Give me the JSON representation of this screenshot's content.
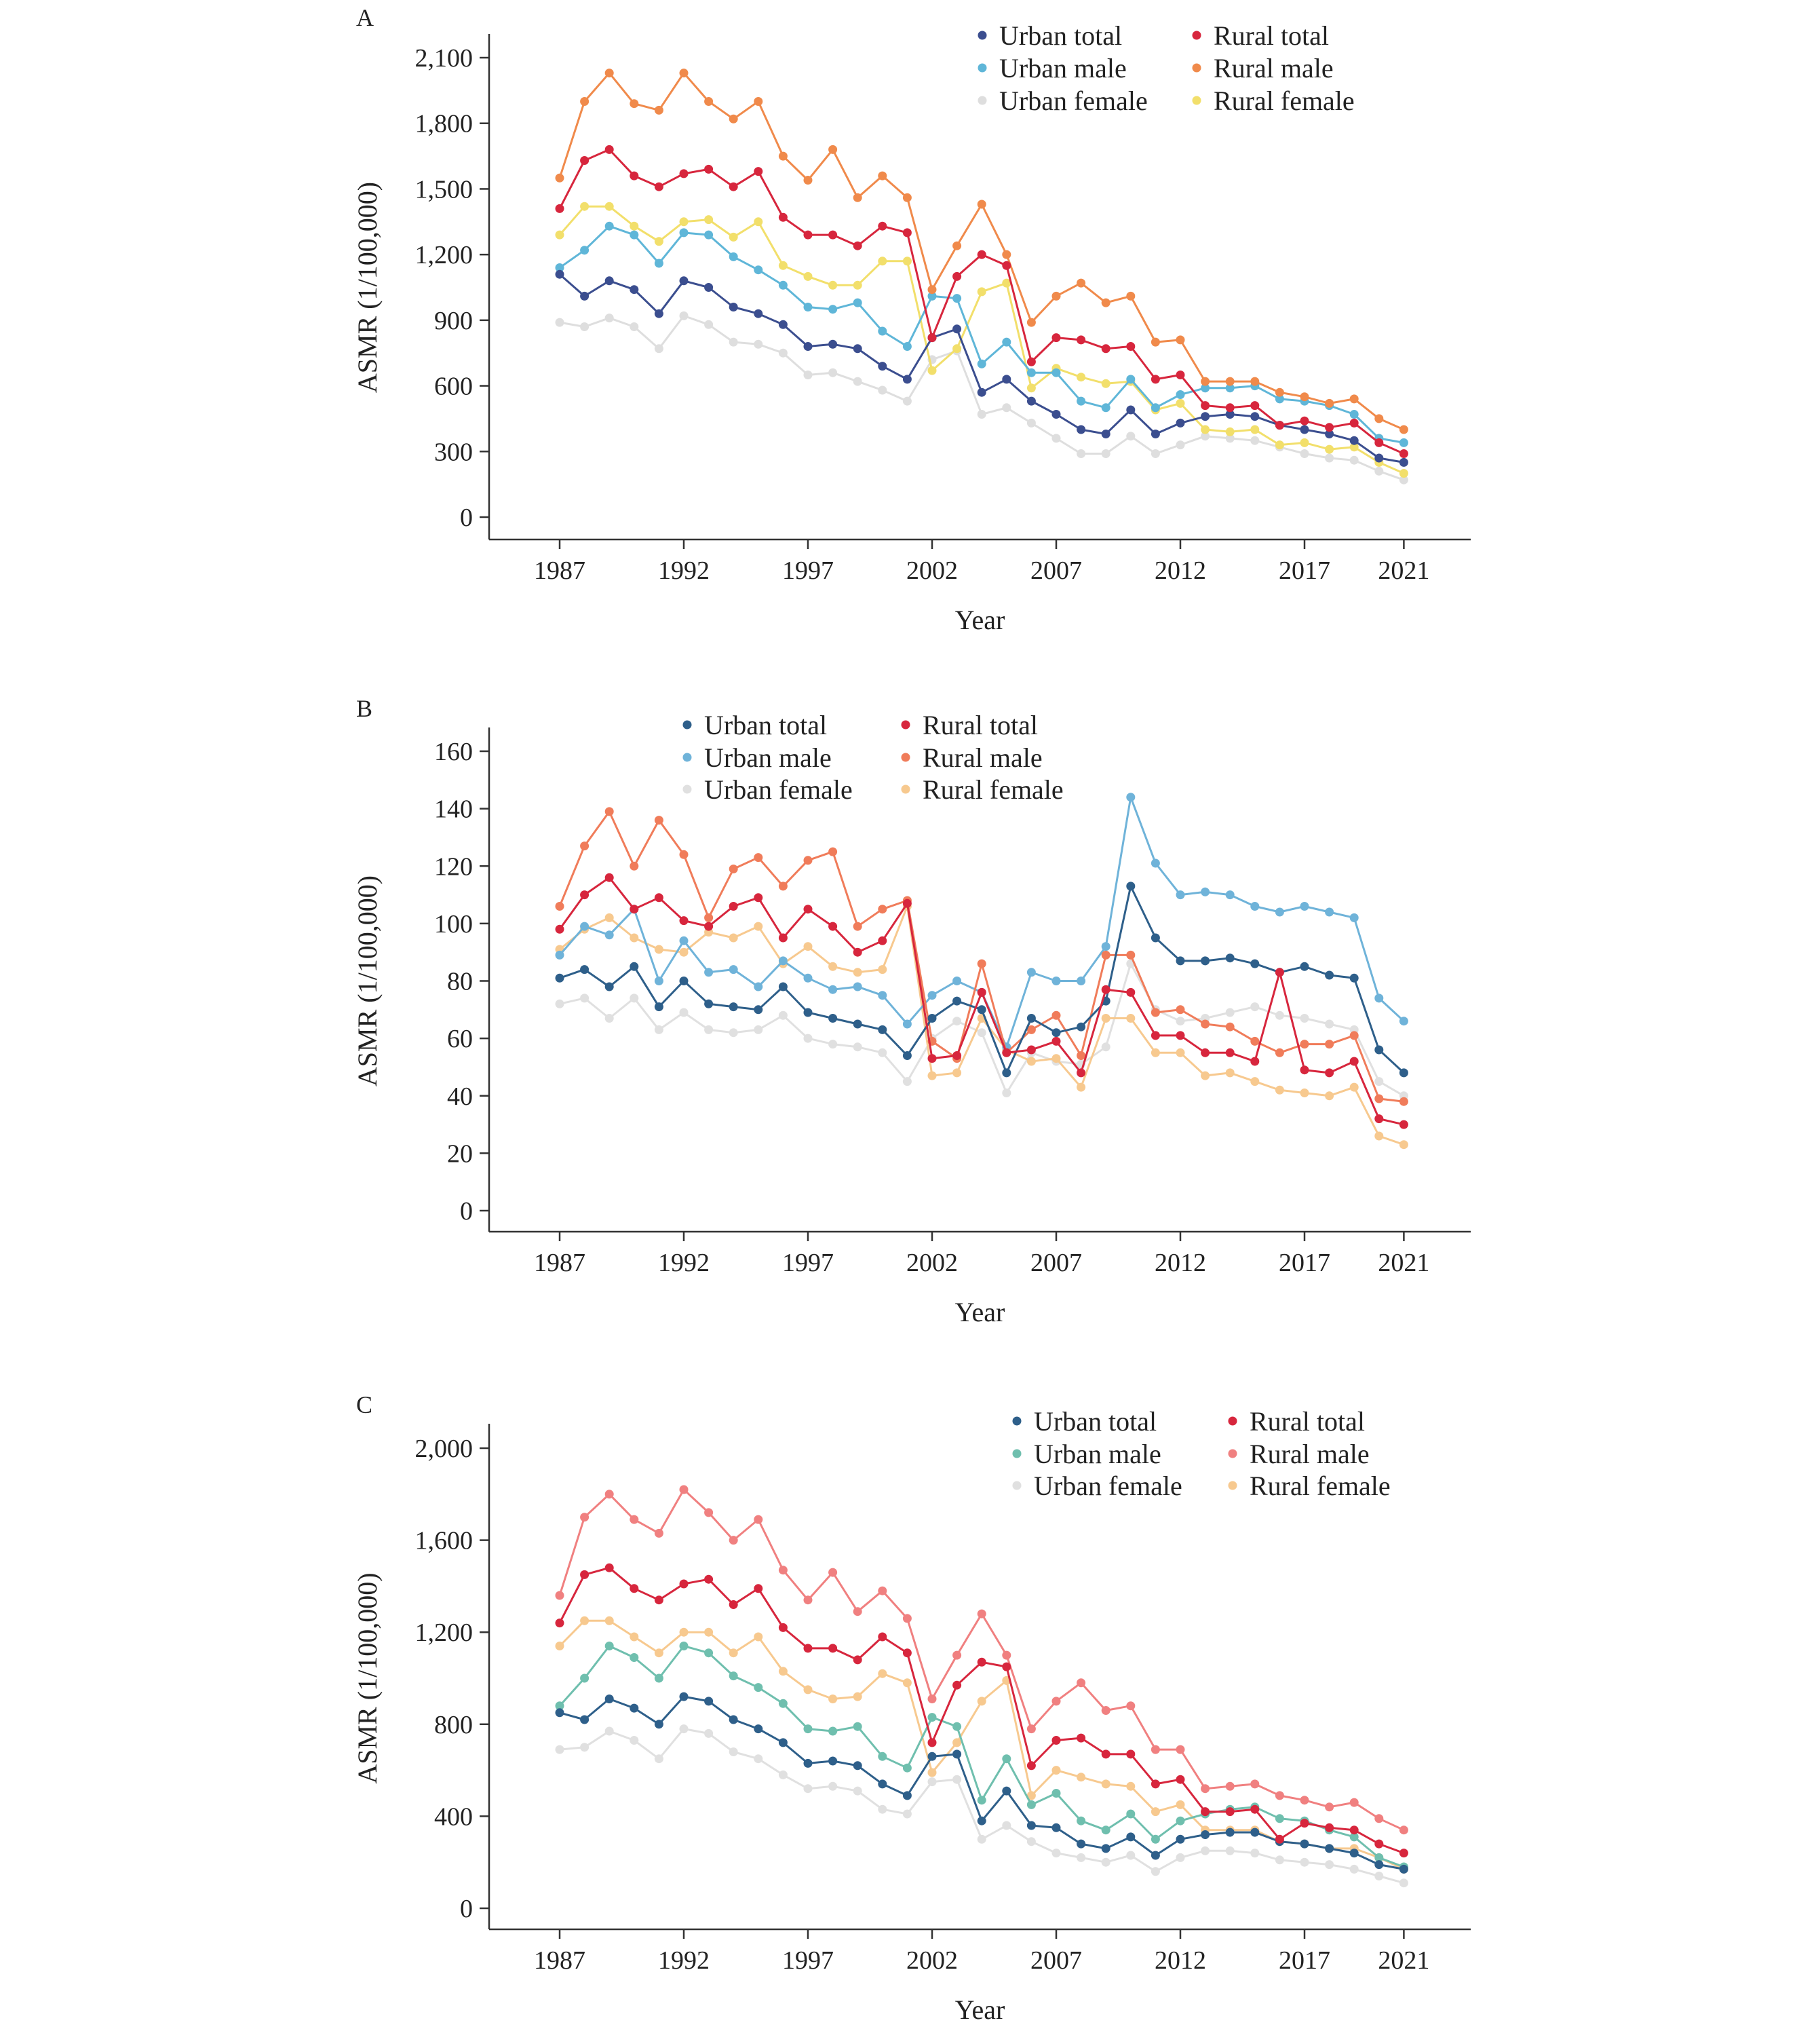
{
  "chart_data": [
    {
      "panel": "A",
      "type": "line",
      "xlabel": "Year",
      "ylabel": "ASMR (1/100,000)",
      "ylim": [
        0,
        2100
      ],
      "yticks": [
        0,
        300,
        600,
        900,
        1200,
        1500,
        1800,
        2100
      ],
      "ytick_labels": [
        "0",
        "300",
        "600",
        "900",
        "1,200",
        "1,500",
        "1,800",
        "2,100"
      ],
      "xlim": [
        1987,
        2021
      ],
      "xticks": [
        1987,
        1992,
        1997,
        2002,
        2007,
        2012,
        2017,
        2021
      ],
      "grid": false,
      "legend_position": "top-right",
      "x": [
        1987,
        1988,
        1989,
        1990,
        1991,
        1992,
        1993,
        1994,
        1995,
        1996,
        1997,
        1998,
        1999,
        2000,
        2001,
        2002,
        2003,
        2004,
        2005,
        2006,
        2007,
        2008,
        2009,
        2010,
        2011,
        2012,
        2013,
        2014,
        2015,
        2016,
        2017,
        2018,
        2019,
        2020,
        2021
      ],
      "series": [
        {
          "name": "Urban total",
          "color": "#3b4e8f",
          "values": [
            1110,
            1010,
            1080,
            1040,
            930,
            1080,
            1050,
            960,
            930,
            880,
            780,
            790,
            770,
            690,
            630,
            820,
            860,
            570,
            630,
            530,
            470,
            400,
            380,
            490,
            380,
            430,
            460,
            470,
            460,
            420,
            400,
            380,
            350,
            270,
            250
          ]
        },
        {
          "name": "Urban male",
          "color": "#5fb6d8",
          "values": [
            1140,
            1220,
            1330,
            1290,
            1160,
            1300,
            1290,
            1190,
            1130,
            1060,
            960,
            950,
            980,
            850,
            780,
            1010,
            1000,
            700,
            800,
            660,
            660,
            530,
            500,
            630,
            500,
            560,
            590,
            590,
            600,
            540,
            530,
            510,
            470,
            360,
            340
          ]
        },
        {
          "name": "Urban female",
          "color": "#dedede",
          "values": [
            890,
            870,
            910,
            870,
            770,
            920,
            880,
            800,
            790,
            750,
            650,
            660,
            620,
            580,
            530,
            720,
            760,
            470,
            500,
            430,
            360,
            290,
            290,
            370,
            290,
            330,
            370,
            360,
            350,
            320,
            290,
            270,
            260,
            210,
            170
          ]
        },
        {
          "name": "Rural total",
          "color": "#d7263d",
          "values": [
            1410,
            1630,
            1680,
            1560,
            1510,
            1570,
            1590,
            1510,
            1580,
            1370,
            1290,
            1290,
            1240,
            1330,
            1300,
            820,
            1100,
            1200,
            1150,
            710,
            820,
            810,
            770,
            780,
            630,
            650,
            510,
            500,
            510,
            420,
            440,
            410,
            430,
            340,
            290
          ]
        },
        {
          "name": "Rural male",
          "color": "#f08a4b",
          "values": [
            1550,
            1900,
            2030,
            1890,
            1860,
            2030,
            1900,
            1820,
            1900,
            1650,
            1540,
            1680,
            1460,
            1560,
            1460,
            1040,
            1240,
            1430,
            1200,
            890,
            1010,
            1070,
            980,
            1010,
            800,
            810,
            620,
            620,
            620,
            570,
            550,
            520,
            540,
            450,
            400
          ]
        },
        {
          "name": "Rural female",
          "color": "#f2df6b",
          "values": [
            1290,
            1420,
            1420,
            1330,
            1260,
            1350,
            1360,
            1280,
            1350,
            1150,
            1100,
            1060,
            1060,
            1170,
            1170,
            670,
            770,
            1030,
            1070,
            590,
            680,
            640,
            610,
            620,
            490,
            520,
            400,
            390,
            400,
            330,
            340,
            310,
            320,
            250,
            200
          ]
        }
      ]
    },
    {
      "panel": "B",
      "type": "line",
      "xlabel": "Year",
      "ylabel": "ASMR (1/100,000)",
      "ylim": [
        0,
        160
      ],
      "yticks": [
        0,
        20,
        40,
        60,
        80,
        100,
        120,
        140,
        160
      ],
      "ytick_labels": [
        "0",
        "20",
        "40",
        "60",
        "80",
        "100",
        "120",
        "140",
        "160"
      ],
      "xlim": [
        1987,
        2021
      ],
      "xticks": [
        1987,
        1992,
        1997,
        2002,
        2007,
        2012,
        2017,
        2021
      ],
      "grid": false,
      "legend_position": "top-left",
      "x": [
        1987,
        1988,
        1989,
        1990,
        1991,
        1992,
        1993,
        1994,
        1995,
        1996,
        1997,
        1998,
        1999,
        2000,
        2001,
        2002,
        2003,
        2004,
        2005,
        2006,
        2007,
        2008,
        2009,
        2010,
        2011,
        2012,
        2013,
        2014,
        2015,
        2016,
        2017,
        2018,
        2019,
        2020,
        2021
      ],
      "series": [
        {
          "name": "Urban total",
          "color": "#2e5f8a",
          "values": [
            81,
            84,
            78,
            85,
            71,
            80,
            72,
            71,
            70,
            78,
            69,
            67,
            65,
            63,
            54,
            67,
            73,
            70,
            48,
            67,
            62,
            64,
            73,
            113,
            95,
            87,
            87,
            88,
            86,
            83,
            85,
            82,
            81,
            56,
            48
          ]
        },
        {
          "name": "Urban male",
          "color": "#6fb3d9",
          "values": [
            89,
            99,
            96,
            105,
            80,
            94,
            83,
            84,
            78,
            87,
            81,
            77,
            78,
            75,
            65,
            75,
            80,
            76,
            57,
            83,
            80,
            80,
            92,
            144,
            121,
            110,
            111,
            110,
            106,
            104,
            106,
            104,
            102,
            74,
            66
          ]
        },
        {
          "name": "Urban female",
          "color": "#e0e0e0",
          "values": [
            72,
            74,
            67,
            74,
            63,
            69,
            63,
            62,
            63,
            68,
            60,
            58,
            57,
            55,
            45,
            60,
            66,
            62,
            41,
            55,
            52,
            51,
            57,
            86,
            70,
            66,
            67,
            69,
            71,
            68,
            67,
            65,
            63,
            45,
            40
          ]
        },
        {
          "name": "Rural total",
          "color": "#d7263d",
          "values": [
            98,
            110,
            116,
            105,
            109,
            101,
            99,
            106,
            109,
            95,
            105,
            99,
            90,
            94,
            107,
            53,
            54,
            76,
            55,
            56,
            59,
            48,
            77,
            76,
            61,
            61,
            55,
            55,
            52,
            83,
            49,
            48,
            52,
            32,
            30
          ]
        },
        {
          "name": "Rural male",
          "color": "#f07c5a",
          "values": [
            106,
            127,
            139,
            120,
            136,
            124,
            102,
            119,
            123,
            113,
            122,
            125,
            99,
            105,
            108,
            59,
            53,
            86,
            55,
            63,
            68,
            54,
            89,
            89,
            69,
            70,
            65,
            64,
            59,
            55,
            58,
            58,
            61,
            39,
            38
          ]
        },
        {
          "name": "Rural female",
          "color": "#f7c98f",
          "values": [
            91,
            98,
            102,
            95,
            91,
            90,
            97,
            95,
            99,
            86,
            92,
            85,
            83,
            84,
            106,
            47,
            48,
            67,
            56,
            52,
            53,
            43,
            67,
            67,
            55,
            55,
            47,
            48,
            45,
            42,
            41,
            40,
            43,
            26,
            23
          ]
        }
      ]
    },
    {
      "panel": "C",
      "type": "line",
      "xlabel": "Year",
      "ylabel": "ASMR (1/100,000)",
      "ylim": [
        0,
        2000
      ],
      "yticks": [
        0,
        400,
        800,
        1200,
        1600,
        2000
      ],
      "ytick_labels": [
        "0",
        "400",
        "800",
        "1,200",
        "1,600",
        "2,000"
      ],
      "xlim": [
        1987,
        2021
      ],
      "xticks": [
        1987,
        1992,
        1997,
        2002,
        2007,
        2012,
        2017,
        2021
      ],
      "grid": false,
      "legend_position": "top-right",
      "x": [
        1987,
        1988,
        1989,
        1990,
        1991,
        1992,
        1993,
        1994,
        1995,
        1996,
        1997,
        1998,
        1999,
        2000,
        2001,
        2002,
        2003,
        2004,
        2005,
        2006,
        2007,
        2008,
        2009,
        2010,
        2011,
        2012,
        2013,
        2014,
        2015,
        2016,
        2017,
        2018,
        2019,
        2020,
        2021
      ],
      "series": [
        {
          "name": "Urban total",
          "color": "#2e5f8a",
          "values": [
            850,
            820,
            910,
            870,
            800,
            920,
            900,
            820,
            780,
            720,
            630,
            640,
            620,
            540,
            490,
            660,
            670,
            380,
            510,
            360,
            350,
            280,
            260,
            310,
            230,
            300,
            320,
            330,
            330,
            290,
            280,
            260,
            240,
            190,
            170
          ]
        },
        {
          "name": "Urban male",
          "color": "#6fbfae",
          "values": [
            880,
            1000,
            1140,
            1090,
            1000,
            1140,
            1110,
            1010,
            960,
            890,
            780,
            770,
            790,
            660,
            610,
            830,
            790,
            470,
            650,
            450,
            500,
            380,
            340,
            410,
            300,
            380,
            410,
            430,
            440,
            390,
            380,
            340,
            310,
            220,
            180
          ]
        },
        {
          "name": "Urban female",
          "color": "#e0e0e0",
          "values": [
            690,
            700,
            770,
            730,
            650,
            780,
            760,
            680,
            650,
            580,
            520,
            530,
            510,
            430,
            410,
            550,
            560,
            300,
            360,
            290,
            240,
            220,
            200,
            230,
            160,
            220,
            250,
            250,
            240,
            210,
            200,
            190,
            170,
            140,
            110
          ]
        },
        {
          "name": "Rural total",
          "color": "#d7263d",
          "values": [
            1240,
            1450,
            1480,
            1390,
            1340,
            1410,
            1430,
            1320,
            1390,
            1220,
            1130,
            1130,
            1080,
            1180,
            1110,
            720,
            970,
            1070,
            1050,
            620,
            730,
            740,
            670,
            670,
            540,
            560,
            420,
            420,
            430,
            300,
            370,
            350,
            340,
            280,
            240
          ]
        },
        {
          "name": "Rural male",
          "color": "#f08080",
          "values": [
            1360,
            1700,
            1800,
            1690,
            1630,
            1820,
            1720,
            1600,
            1690,
            1470,
            1340,
            1460,
            1290,
            1380,
            1260,
            910,
            1100,
            1280,
            1100,
            780,
            900,
            980,
            860,
            880,
            690,
            690,
            520,
            530,
            540,
            490,
            470,
            440,
            460,
            390,
            340
          ]
        },
        {
          "name": "Rural female",
          "color": "#f7c98f",
          "values": [
            1140,
            1250,
            1250,
            1180,
            1110,
            1200,
            1200,
            1110,
            1180,
            1030,
            950,
            910,
            920,
            1020,
            980,
            590,
            720,
            900,
            990,
            490,
            600,
            570,
            540,
            530,
            420,
            450,
            340,
            340,
            340,
            290,
            280,
            260,
            260,
            220,
            170
          ]
        }
      ]
    }
  ]
}
